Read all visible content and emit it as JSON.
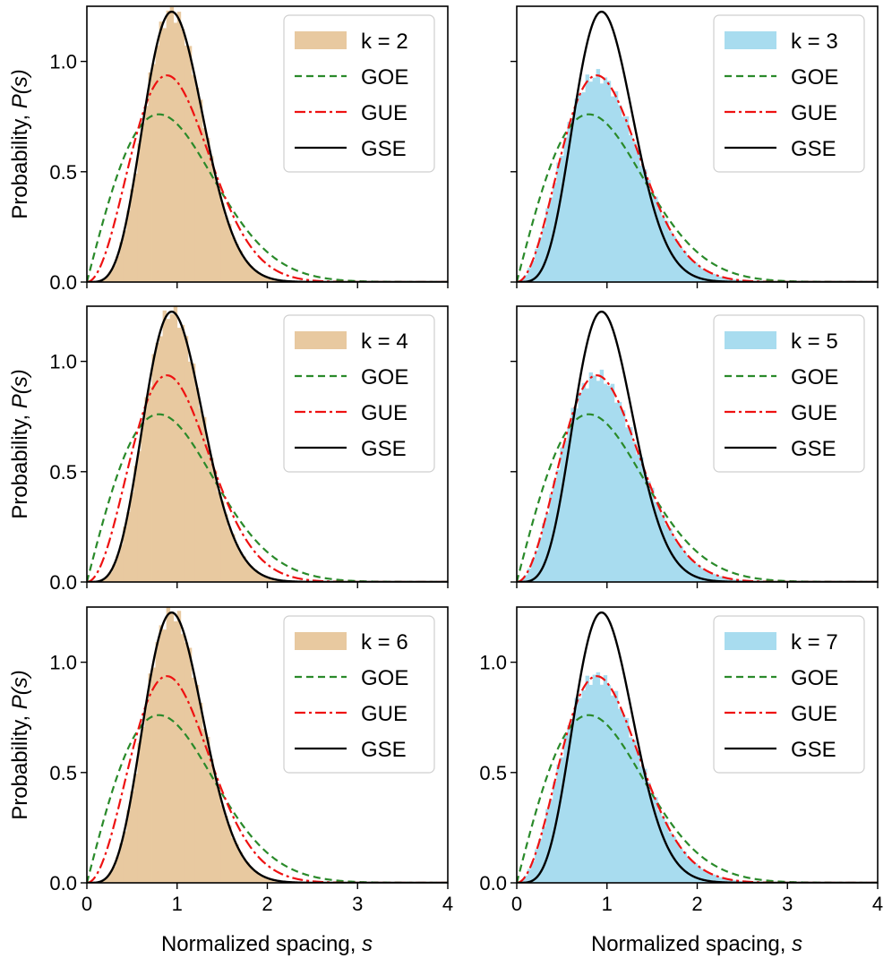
{
  "chart_data": {
    "type": "histogram-with-curves",
    "xlabel_text": "Normalized spacing, ",
    "xlabel_var": "s",
    "ylabel_text": "Probability, ",
    "ylabel_var": "P(s)",
    "xlim": [
      0,
      4
    ],
    "ylim": [
      0,
      1.25
    ],
    "xticks": [
      "0",
      "1",
      "2",
      "3",
      "4"
    ],
    "yticks": [
      "0.0",
      "0.5",
      "1.0"
    ],
    "colors": {
      "tan": "#e8c9a0",
      "sky": "#a8dcef",
      "GOE": "#2a8a2a",
      "GUE": "#ee1111",
      "GSE": "#000000"
    },
    "series": [
      {
        "name": "GOE",
        "formula": "(pi/2) s exp(-pi s^2 / 4)"
      },
      {
        "name": "GUE",
        "formula": "(32/pi^2) s^2 exp(-4 s^2 / pi)"
      },
      {
        "name": "GSE",
        "formula": "(2^18/(3^6 pi^3)) s^4 exp(-64 s^2 / (9 pi))"
      }
    ],
    "panels": [
      {
        "label": "k = 2",
        "hist_color": "tan",
        "hist_matches": "GSE",
        "show_x_tick_labels": false,
        "show_y_tick_labels": true,
        "show_ylabel": true
      },
      {
        "label": "k = 3",
        "hist_color": "sky",
        "hist_matches": "GUE",
        "show_x_tick_labels": false,
        "show_y_tick_labels": false,
        "show_ylabel": false
      },
      {
        "label": "k = 4",
        "hist_color": "tan",
        "hist_matches": "GSE",
        "show_x_tick_labels": false,
        "show_y_tick_labels": true,
        "show_ylabel": true
      },
      {
        "label": "k = 5",
        "hist_color": "sky",
        "hist_matches": "GUE",
        "show_x_tick_labels": false,
        "show_y_tick_labels": false,
        "show_ylabel": false
      },
      {
        "label": "k = 6",
        "hist_color": "tan",
        "hist_matches": "GSE",
        "show_x_tick_labels": true,
        "show_y_tick_labels": true,
        "show_ylabel": true
      },
      {
        "label": "k = 7",
        "hist_color": "sky",
        "hist_matches": "GUE",
        "show_x_tick_labels": true,
        "show_y_tick_labels": true,
        "show_ylabel": false
      }
    ]
  }
}
